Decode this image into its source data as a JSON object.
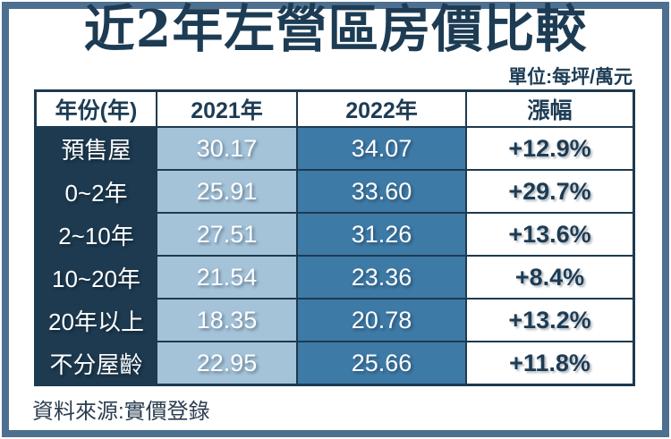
{
  "title": "近2年左營區房價比較",
  "unit_note": "單位:每坪/萬元",
  "source": "資料來源:實價登錄",
  "colors": {
    "frame_border": "#4e7090",
    "dark_navy": "#1d3a50",
    "light_blue_2021": "#a4c2d8",
    "medium_blue_2022": "#3e7aa6",
    "text_navy": "#1d3c54",
    "cell_text_white": "#ffffff"
  },
  "table": {
    "headers": [
      "年份(年)",
      "2021年",
      "2022年",
      "漲幅"
    ],
    "rows": [
      {
        "age": "預售屋",
        "y2021": "30.17",
        "y2022": "34.07",
        "change": "+12.9%"
      },
      {
        "age": "0~2年",
        "y2021": "25.91",
        "y2022": "33.60",
        "change": "+29.7%"
      },
      {
        "age": "2~10年",
        "y2021": "27.51",
        "y2022": "31.26",
        "change": "+13.6%"
      },
      {
        "age": "10~20年",
        "y2021": "21.54",
        "y2022": "23.36",
        "change": "+8.4%"
      },
      {
        "age": "20年以上",
        "y2021": "18.35",
        "y2022": "20.78",
        "change": "+13.2%"
      },
      {
        "age": "不分屋齡",
        "y2021": "22.95",
        "y2022": "25.66",
        "change": "+11.8%"
      }
    ]
  },
  "chart_data": {
    "type": "table",
    "title": "近2年左營區房價比較",
    "unit": "每坪/萬元",
    "columns": [
      "年份(年)",
      "2021年",
      "2022年",
      "漲幅"
    ],
    "categories": [
      "預售屋",
      "0~2年",
      "2~10年",
      "10~20年",
      "20年以上",
      "不分屋齡"
    ],
    "series": [
      {
        "name": "2021年",
        "values": [
          30.17,
          25.91,
          27.51,
          21.54,
          18.35,
          22.95
        ]
      },
      {
        "name": "2022年",
        "values": [
          34.07,
          33.6,
          31.26,
          23.36,
          20.78,
          25.66
        ]
      },
      {
        "name": "漲幅",
        "values": [
          "+12.9%",
          "+29.7%",
          "+13.6%",
          "+8.4%",
          "+13.2%",
          "+11.8%"
        ]
      }
    ],
    "source": "實價登錄"
  }
}
